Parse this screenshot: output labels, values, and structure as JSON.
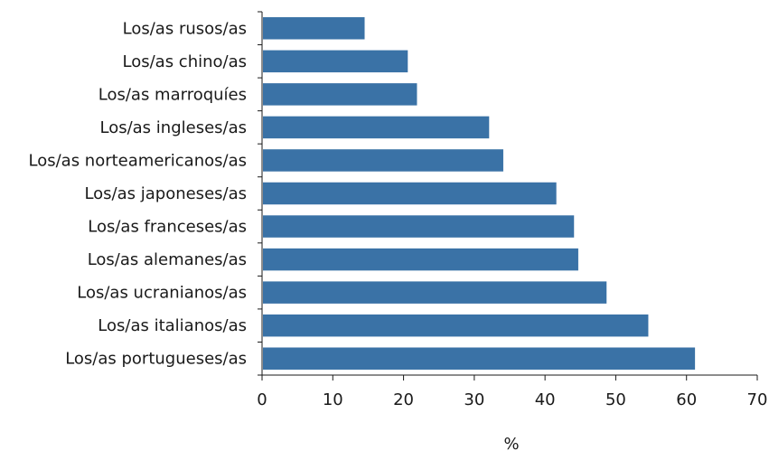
{
  "chart_data": {
    "type": "bar",
    "orientation": "horizontal",
    "categories": [
      "Los/as rusos/as",
      "Los/as chino/as",
      "Los/as marroquíes",
      "Los/as ingleses/as",
      "Los/as norteamericanos/as",
      "Los/as japoneses/as",
      "Los/as franceses/as",
      "Los/as alemanes/as",
      "Los/as ucranianos/as",
      "Los/as italianos/as",
      "Los/as portugueses/as"
    ],
    "values": [
      14.5,
      20.6,
      21.9,
      32.1,
      34.1,
      41.6,
      44.1,
      44.7,
      48.7,
      54.6,
      61.2
    ],
    "xlabel": "%",
    "ylabel": "",
    "xlim": [
      0,
      70
    ],
    "xticks": [
      0,
      10,
      20,
      30,
      40,
      50,
      60,
      70
    ],
    "grid": false,
    "legend": "none",
    "bar_color": "#3a72a6",
    "axis_color": "#1a1a1a"
  }
}
